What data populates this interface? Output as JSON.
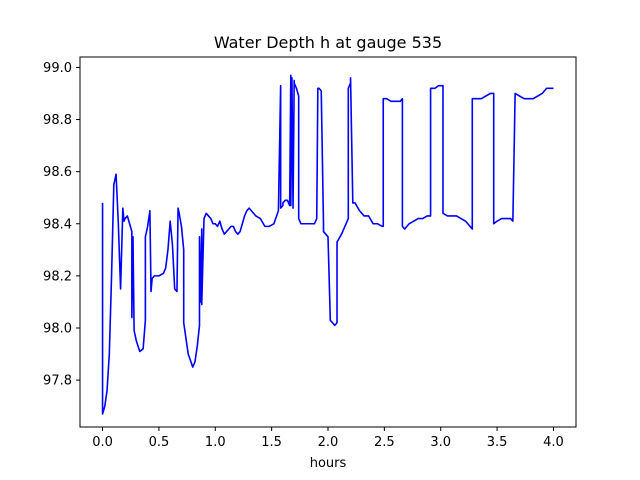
{
  "chart_data": {
    "type": "line",
    "title": "Water Depth h at gauge 535",
    "xlabel": "hours",
    "ylabel": "",
    "xlim": [
      -0.2,
      4.2
    ],
    "ylim": [
      97.62,
      99.04
    ],
    "xticks": [
      0.0,
      0.5,
      1.0,
      1.5,
      2.0,
      2.5,
      3.0,
      3.5,
      4.0
    ],
    "xtick_labels": [
      "0.0",
      "0.5",
      "1.0",
      "1.5",
      "2.0",
      "2.5",
      "3.0",
      "3.5",
      "4.0"
    ],
    "yticks": [
      97.8,
      98.0,
      98.2,
      98.4,
      98.6,
      98.8,
      99.0
    ],
    "ytick_labels": [
      "97.8",
      "98.0",
      "98.2",
      "98.4",
      "98.6",
      "98.8",
      "99.0"
    ],
    "grid": false,
    "legend": "none",
    "series": [
      {
        "color": "#0000ff",
        "x": [
          0.0,
          0.0,
          0.02,
          0.04,
          0.06,
          0.08,
          0.1,
          0.12,
          0.14,
          0.16,
          0.18,
          0.19,
          0.2,
          0.22,
          0.24,
          0.26,
          0.26,
          0.27,
          0.28,
          0.3,
          0.33,
          0.36,
          0.38,
          0.38,
          0.4,
          0.42,
          0.43,
          0.44,
          0.46,
          0.5,
          0.54,
          0.56,
          0.58,
          0.6,
          0.62,
          0.64,
          0.66,
          0.67,
          0.68,
          0.7,
          0.72,
          0.72,
          0.76,
          0.8,
          0.82,
          0.84,
          0.86,
          0.86,
          0.87,
          0.88,
          0.88,
          0.9,
          0.92,
          0.94,
          0.96,
          0.98,
          1.0,
          1.02,
          1.04,
          1.06,
          1.08,
          1.1,
          1.12,
          1.14,
          1.16,
          1.18,
          1.2,
          1.22,
          1.24,
          1.26,
          1.28,
          1.3,
          1.32,
          1.34,
          1.36,
          1.4,
          1.44,
          1.48,
          1.52,
          1.56,
          1.58,
          1.58,
          1.6,
          1.6,
          1.62,
          1.64,
          1.66,
          1.67,
          1.67,
          1.68,
          1.69,
          1.7,
          1.7,
          1.72,
          1.74,
          1.74,
          1.76,
          1.8,
          1.84,
          1.88,
          1.9,
          1.91,
          1.92,
          1.94,
          1.96,
          1.96,
          2.0,
          2.02,
          2.02,
          2.04,
          2.06,
          2.08,
          2.08,
          2.12,
          2.16,
          2.18,
          2.18,
          2.2,
          2.2,
          2.22,
          2.24,
          2.28,
          2.32,
          2.36,
          2.4,
          2.44,
          2.48,
          2.49,
          2.49,
          2.52,
          2.56,
          2.6,
          2.64,
          2.66,
          2.66,
          2.68,
          2.72,
          2.76,
          2.8,
          2.84,
          2.88,
          2.91,
          2.91,
          2.95,
          2.98,
          3.02,
          3.02,
          3.06,
          3.1,
          3.14,
          3.18,
          3.22,
          3.26,
          3.28,
          3.28,
          3.32,
          3.36,
          3.4,
          3.44,
          3.47,
          3.47,
          3.5,
          3.54,
          3.58,
          3.62,
          3.64,
          3.66,
          3.66,
          3.7,
          3.74,
          3.78,
          3.82,
          3.86,
          3.9,
          3.94,
          3.98,
          4.0
        ],
        "y": [
          98.48,
          97.67,
          97.7,
          97.76,
          97.9,
          98.2,
          98.55,
          98.59,
          98.4,
          98.15,
          98.46,
          98.41,
          98.42,
          98.43,
          98.4,
          98.37,
          98.04,
          98.35,
          97.99,
          97.95,
          97.91,
          97.92,
          98.03,
          98.35,
          98.39,
          98.45,
          98.14,
          98.19,
          98.2,
          98.2,
          98.21,
          98.23,
          98.3,
          98.41,
          98.32,
          98.15,
          98.14,
          98.46,
          98.44,
          98.39,
          98.3,
          98.02,
          97.9,
          97.85,
          97.87,
          97.93,
          98.01,
          98.35,
          98.1,
          98.38,
          98.09,
          98.42,
          98.44,
          98.43,
          98.42,
          98.4,
          98.4,
          98.39,
          98.41,
          98.38,
          98.36,
          98.37,
          98.38,
          98.39,
          98.39,
          98.37,
          98.36,
          98.37,
          98.4,
          98.43,
          98.45,
          98.46,
          98.45,
          98.44,
          98.43,
          98.42,
          98.39,
          98.39,
          98.4,
          98.45,
          98.93,
          98.46,
          98.47,
          98.48,
          98.49,
          98.49,
          98.47,
          98.97,
          98.47,
          98.96,
          98.46,
          98.95,
          98.94,
          98.92,
          98.89,
          98.42,
          98.4,
          98.4,
          98.4,
          98.4,
          98.42,
          98.92,
          98.92,
          98.91,
          98.4,
          98.37,
          98.35,
          98.04,
          98.03,
          98.02,
          98.01,
          98.02,
          98.33,
          98.36,
          98.4,
          98.42,
          98.92,
          98.94,
          98.96,
          98.48,
          98.48,
          98.45,
          98.43,
          98.43,
          98.4,
          98.4,
          98.39,
          98.39,
          98.88,
          98.88,
          98.87,
          98.87,
          98.87,
          98.88,
          98.39,
          98.38,
          98.4,
          98.41,
          98.42,
          98.42,
          98.43,
          98.43,
          98.92,
          98.92,
          98.93,
          98.93,
          98.44,
          98.43,
          98.43,
          98.43,
          98.42,
          98.41,
          98.39,
          98.38,
          98.88,
          98.88,
          98.88,
          98.89,
          98.9,
          98.9,
          98.4,
          98.41,
          98.42,
          98.42,
          98.42,
          98.41,
          98.9,
          98.9,
          98.89,
          98.88,
          98.88,
          98.88,
          98.89,
          98.9,
          98.92,
          98.92,
          98.92
        ]
      }
    ]
  }
}
